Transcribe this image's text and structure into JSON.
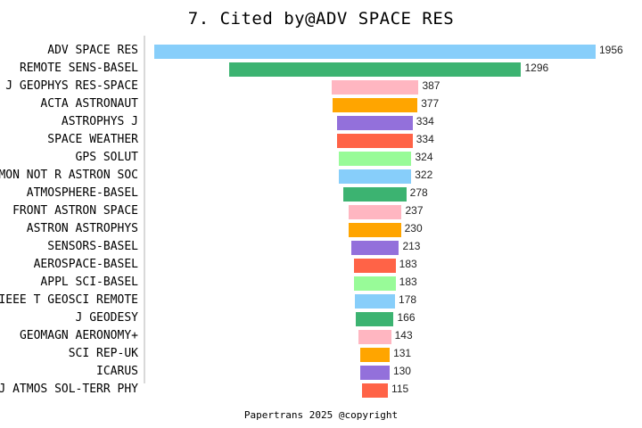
{
  "chart_data": {
    "type": "bar",
    "orientation": "horizontal-funnel",
    "title": "7. Cited by@ADV SPACE RES",
    "footer": "Papertrans 2025 @copyright",
    "xlabel": "",
    "ylabel": "",
    "grid": false,
    "legend": "none",
    "categories": [
      "ADV SPACE RES",
      "REMOTE SENS-BASEL",
      "J GEOPHYS RES-SPACE",
      "ACTA ASTRONAUT",
      "ASTROPHYS J",
      "SPACE WEATHER",
      "GPS SOLUT",
      "MON NOT R ASTRON SOC",
      "ATMOSPHERE-BASEL",
      "FRONT ASTRON SPACE",
      "ASTRON ASTROPHYS",
      "SENSORS-BASEL",
      "AEROSPACE-BASEL",
      "APPL SCI-BASEL",
      "IEEE T GEOSCI REMOTE",
      "J GEODESY",
      "GEOMAGN AERONOMY+",
      "SCI REP-UK",
      "ICARUS",
      "J ATMOS SOL-TERR PHY"
    ],
    "values": [
      1956,
      1296,
      387,
      377,
      334,
      334,
      324,
      322,
      278,
      237,
      230,
      213,
      183,
      183,
      178,
      166,
      143,
      131,
      130,
      115
    ],
    "colors": [
      "#87CEFA",
      "#3CB371",
      "#FFB6C1",
      "#FFA500",
      "#9370DB",
      "#FF6347",
      "#98FB98",
      "#87CEFA",
      "#3CB371",
      "#FFB6C1",
      "#FFA500",
      "#9370DB",
      "#FF6347",
      "#98FB98",
      "#87CEFA",
      "#3CB371",
      "#FFB6C1",
      "#FFA500",
      "#9370DB",
      "#FF6347"
    ]
  }
}
